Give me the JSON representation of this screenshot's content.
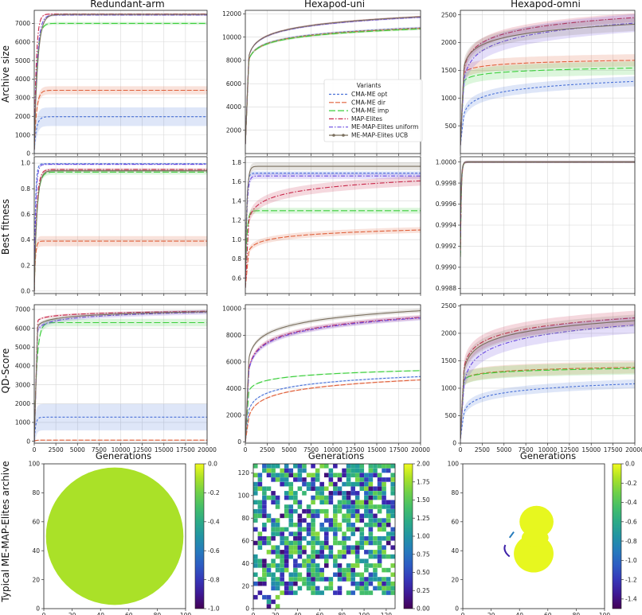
{
  "figure": {
    "col_titles": [
      "Redundant-arm",
      "Hexapod-uni",
      "Hexapod-omni"
    ],
    "row_labels": [
      "Archive size",
      "Best fitness",
      "QD-Score",
      "Typical ME-MAP-Elites archive"
    ],
    "xlabel": "Generations",
    "x_ticks": [
      0,
      2500,
      5000,
      7500,
      10000,
      12500,
      15000,
      17500,
      20000
    ],
    "legend_title": "Variants",
    "variants": [
      {
        "name": "CMA-ME opt",
        "color": "#4a72d8",
        "dash": "3,2"
      },
      {
        "name": "CMA-ME dir",
        "color": "#e0603a",
        "dash": "6,2"
      },
      {
        "name": "CMA-ME imp",
        "color": "#3ccf3c",
        "dash": "8,3"
      },
      {
        "name": "MAP-Elites",
        "color": "#c8284a",
        "dash": "6,2,1.5,2"
      },
      {
        "name": "ME-MAP-Elites uniform",
        "color": "#6a4ae0",
        "dash": "5,2,1.5,2"
      },
      {
        "name": "ME-MAP-Elites UCB",
        "color": "#7a6f5e",
        "dash": ""
      }
    ]
  },
  "chart_data": [
    {
      "type": "line",
      "id": "archive-redundant",
      "title": "Redundant-arm",
      "ylabel": "Archive size",
      "xlabel": "",
      "xlim": [
        0,
        20000
      ],
      "ylim": [
        0,
        7700
      ],
      "y_ticks": [
        0,
        1000,
        2000,
        3000,
        4000,
        5000,
        6000,
        7000
      ],
      "series": [
        {
          "name": "CMA-ME opt",
          "final": 1980,
          "start": 200,
          "rise": 800,
          "shape": "fast",
          "band": 500
        },
        {
          "name": "CMA-ME dir",
          "final": 3400,
          "start": 200,
          "rise": 800,
          "shape": "fast",
          "band": 220
        },
        {
          "name": "CMA-ME imp",
          "final": 7000,
          "start": 200,
          "rise": 900,
          "shape": "fast",
          "band": 80
        },
        {
          "name": "MAP-Elites",
          "final": 7500,
          "start": 200,
          "rise": 700,
          "shape": "fast",
          "band": 40
        },
        {
          "name": "ME-MAP-Elites uniform",
          "final": 7450,
          "start": 200,
          "rise": 1000,
          "shape": "fast",
          "band": 50
        },
        {
          "name": "ME-MAP-Elites UCB",
          "final": 7480,
          "start": 200,
          "rise": 1200,
          "shape": "fast",
          "band": 60
        }
      ]
    },
    {
      "type": "line",
      "id": "archive-hexuni",
      "title": "Hexapod-uni",
      "ylabel": "",
      "xlabel": "",
      "xlim": [
        0,
        20000
      ],
      "ylim": [
        0,
        12300
      ],
      "y_ticks": [
        2000,
        4000,
        6000,
        8000,
        10000,
        12000
      ],
      "series": [
        {
          "name": "CMA-ME opt",
          "final": 10800,
          "start": 800,
          "mid": 8000,
          "shape": "log",
          "band": 100
        },
        {
          "name": "CMA-ME dir",
          "final": 10750,
          "start": 800,
          "mid": 8000,
          "shape": "log",
          "band": 100
        },
        {
          "name": "CMA-ME imp",
          "final": 10700,
          "start": 800,
          "mid": 8000,
          "shape": "log",
          "band": 100
        },
        {
          "name": "MAP-Elites",
          "final": 11750,
          "start": 800,
          "mid": 8300,
          "shape": "log",
          "band": 80
        },
        {
          "name": "ME-MAP-Elites uniform",
          "final": 11700,
          "start": 800,
          "mid": 8300,
          "shape": "log",
          "band": 80
        },
        {
          "name": "ME-MAP-Elites UCB",
          "final": 11750,
          "start": 800,
          "mid": 8300,
          "shape": "log",
          "band": 80
        }
      ]
    },
    {
      "type": "line",
      "id": "archive-hexomni",
      "title": "Hexapod-omni",
      "ylabel": "",
      "xlabel": "",
      "xlim": [
        0,
        20000
      ],
      "ylim": [
        0,
        2580
      ],
      "y_ticks": [
        500,
        1000,
        1500,
        2000,
        2500
      ],
      "series": [
        {
          "name": "CMA-ME opt",
          "final": 1300,
          "start": 150,
          "mid": 700,
          "shape": "log",
          "band": 90
        },
        {
          "name": "CMA-ME dir",
          "final": 1680,
          "start": 150,
          "mid": 1450,
          "shape": "log",
          "band": 110
        },
        {
          "name": "CMA-ME imp",
          "final": 1540,
          "start": 150,
          "mid": 1300,
          "shape": "log",
          "band": 120
        },
        {
          "name": "MAP-Elites",
          "final": 2450,
          "start": 150,
          "mid": 1500,
          "shape": "log",
          "band": 80
        },
        {
          "name": "ME-MAP-Elites uniform",
          "final": 2350,
          "start": 150,
          "mid": 1300,
          "shape": "log",
          "band": 160
        },
        {
          "name": "ME-MAP-Elites UCB",
          "final": 2330,
          "start": 150,
          "mid": 1550,
          "shape": "log",
          "band": 120
        }
      ]
    },
    {
      "type": "line",
      "id": "fitness-redundant",
      "title": "",
      "ylabel": "Best fitness",
      "xlabel": "",
      "xlim": [
        0,
        20000
      ],
      "ylim": [
        -0.02,
        1.05
      ],
      "y_ticks": [
        0.0,
        0.2,
        0.4,
        0.6,
        0.8,
        1.0
      ],
      "y_tick_labels": [
        "0.0",
        "0.2",
        "0.4",
        "0.6",
        "0.8",
        "1.0"
      ],
      "series": [
        {
          "name": "CMA-ME opt",
          "final": 0.995,
          "start": 0.0,
          "rise": 400,
          "shape": "fast",
          "band": 0.005
        },
        {
          "name": "CMA-ME dir",
          "final": 0.39,
          "start": 0.0,
          "rise": 400,
          "shape": "fast",
          "band": 0.04
        },
        {
          "name": "CMA-ME imp",
          "final": 0.93,
          "start": 0.0,
          "rise": 900,
          "shape": "fast",
          "band": 0.02
        },
        {
          "name": "MAP-Elites",
          "final": 0.95,
          "start": 0.0,
          "rise": 800,
          "shape": "fast",
          "band": 0.01
        },
        {
          "name": "ME-MAP-Elites uniform",
          "final": 0.99,
          "start": 0.0,
          "rise": 500,
          "shape": "fast",
          "band": 0.005
        },
        {
          "name": "ME-MAP-Elites UCB",
          "final": 0.94,
          "start": 0.0,
          "rise": 900,
          "shape": "fast",
          "band": 0.01
        }
      ]
    },
    {
      "type": "line",
      "id": "fitness-hexuni",
      "title": "",
      "ylabel": "",
      "xlabel": "",
      "xlim": [
        0,
        20000
      ],
      "ylim": [
        0.44,
        1.86
      ],
      "y_ticks": [
        0.6,
        0.8,
        1.0,
        1.2,
        1.4,
        1.6,
        1.8
      ],
      "y_tick_labels": [
        "0.6",
        "0.8",
        "1.0",
        "1.2",
        "1.4",
        "1.6",
        "1.8"
      ],
      "series": [
        {
          "name": "CMA-ME opt",
          "final": 1.69,
          "start": 0.5,
          "rise": 400,
          "shape": "fast",
          "band": 0.02
        },
        {
          "name": "CMA-ME dir",
          "final": 1.1,
          "start": 0.5,
          "mid": 0.88,
          "shape": "log",
          "band": 0.03
        },
        {
          "name": "CMA-ME imp",
          "final": 1.3,
          "start": 0.5,
          "rise": 500,
          "shape": "fast",
          "band": 0.03
        },
        {
          "name": "MAP-Elites",
          "final": 1.61,
          "start": 0.5,
          "mid": 1.2,
          "shape": "log",
          "band": 0.05
        },
        {
          "name": "ME-MAP-Elites uniform",
          "final": 1.66,
          "start": 0.5,
          "rise": 500,
          "shape": "fast",
          "band": 0.03
        },
        {
          "name": "ME-MAP-Elites UCB",
          "final": 1.76,
          "start": 0.5,
          "rise": 500,
          "shape": "fast",
          "band": 0.04
        }
      ]
    },
    {
      "type": "line",
      "id": "fitness-hexomni",
      "title": "",
      "ylabel": "",
      "xlabel": "",
      "xlim": [
        0,
        20000
      ],
      "ylim": [
        0.99875,
        1.00005
      ],
      "y_ticks": [
        0.9988,
        0.999,
        0.9992,
        0.9994,
        0.9996,
        0.9998,
        1.0
      ],
      "y_tick_labels": [
        "0.9988",
        "0.9990",
        "0.9992",
        "0.9994",
        "0.9996",
        "0.9998",
        "1.0000"
      ],
      "series": [
        {
          "name": "CMA-ME opt",
          "final": 1.0,
          "start": 0.9991,
          "rise": 300,
          "shape": "fast",
          "band": 1e-05
        },
        {
          "name": "CMA-ME dir",
          "final": 1.0,
          "start": 0.9991,
          "rise": 300,
          "shape": "fast",
          "band": 1e-05
        },
        {
          "name": "CMA-ME imp",
          "final": 1.0,
          "start": 0.9991,
          "rise": 300,
          "shape": "fast",
          "band": 1e-05
        },
        {
          "name": "MAP-Elites",
          "final": 1.0,
          "start": 0.9992,
          "rise": 300,
          "shape": "fast",
          "band": 1e-05
        },
        {
          "name": "ME-MAP-Elites uniform",
          "final": 1.0,
          "start": 0.9993,
          "rise": 300,
          "shape": "fast",
          "band": 1e-05
        },
        {
          "name": "ME-MAP-Elites UCB",
          "final": 1.0,
          "start": 0.9994,
          "rise": 300,
          "shape": "fast",
          "band": 1e-05
        }
      ]
    },
    {
      "type": "line",
      "id": "qd-redundant",
      "title": "",
      "ylabel": "QD-Score",
      "xlabel": "Generations",
      "xlim": [
        0,
        20000
      ],
      "ylim": [
        -100,
        7250
      ],
      "y_ticks": [
        0,
        1000,
        2000,
        3000,
        4000,
        5000,
        6000,
        7000
      ],
      "series": [
        {
          "name": "CMA-ME opt",
          "final": 1280,
          "start": 0,
          "rise": 500,
          "shape": "fast",
          "band": 700
        },
        {
          "name": "CMA-ME dir",
          "final": 60,
          "start": 0,
          "rise": 500,
          "shape": "fast",
          "band": 20
        },
        {
          "name": "CMA-ME imp",
          "final": 6300,
          "start": 0,
          "rise": 900,
          "shape": "fast",
          "band": 200
        },
        {
          "name": "MAP-Elites",
          "final": 6900,
          "start": 0,
          "mid": 6400,
          "shape": "log",
          "band": 60
        },
        {
          "name": "ME-MAP-Elites uniform",
          "final": 6850,
          "start": 0,
          "mid": 5900,
          "shape": "log",
          "band": 120
        },
        {
          "name": "ME-MAP-Elites UCB",
          "final": 6880,
          "start": 0,
          "mid": 6100,
          "shape": "log",
          "band": 100
        }
      ]
    },
    {
      "type": "line",
      "id": "qd-hexuni",
      "title": "",
      "ylabel": "",
      "xlabel": "Generations",
      "xlim": [
        0,
        20000
      ],
      "ylim": [
        -100,
        10300
      ],
      "y_ticks": [
        0,
        2000,
        4000,
        6000,
        8000,
        10000
      ],
      "series": [
        {
          "name": "CMA-ME opt",
          "final": 4900,
          "start": 0,
          "mid": 2300,
          "shape": "log",
          "band": 60
        },
        {
          "name": "CMA-ME dir",
          "final": 4650,
          "start": 0,
          "mid": 1800,
          "shape": "log",
          "band": 60
        },
        {
          "name": "CMA-ME imp",
          "final": 5350,
          "start": 0,
          "mid": 3800,
          "shape": "log",
          "band": 60
        },
        {
          "name": "MAP-Elites",
          "final": 9350,
          "start": 0,
          "mid": 5400,
          "shape": "log",
          "band": 180
        },
        {
          "name": "ME-MAP-Elites uniform",
          "final": 9300,
          "start": 0,
          "mid": 5300,
          "shape": "log",
          "band": 180
        },
        {
          "name": "ME-MAP-Elites UCB",
          "final": 9850,
          "start": 0,
          "mid": 6200,
          "shape": "log",
          "band": 150
        }
      ]
    },
    {
      "type": "line",
      "id": "qd-hexomni",
      "title": "",
      "ylabel": "",
      "xlabel": "Generations",
      "xlim": [
        0,
        20000
      ],
      "ylim": [
        0,
        2520
      ],
      "y_ticks": [
        0,
        500,
        1000,
        1500,
        2000,
        2500
      ],
      "series": [
        {
          "name": "CMA-ME opt",
          "final": 1080,
          "start": 80,
          "mid": 550,
          "shape": "log",
          "band": 80
        },
        {
          "name": "CMA-ME dir",
          "final": 1380,
          "start": 80,
          "mid": 1150,
          "shape": "log",
          "band": 110
        },
        {
          "name": "CMA-ME imp",
          "final": 1360,
          "start": 80,
          "mid": 1150,
          "shape": "log",
          "band": 110
        },
        {
          "name": "MAP-Elites",
          "final": 2280,
          "start": 80,
          "mid": 1350,
          "shape": "log",
          "band": 130
        },
        {
          "name": "ME-MAP-Elites uniform",
          "final": 2150,
          "start": 80,
          "mid": 1050,
          "shape": "log",
          "band": 150
        },
        {
          "name": "ME-MAP-Elites UCB",
          "final": 2230,
          "start": 80,
          "mid": 1300,
          "shape": "log",
          "band": 110
        }
      ]
    },
    {
      "type": "heatmap",
      "id": "archive-map-redundant",
      "shape": "disk",
      "xlim": [
        0,
        100
      ],
      "ylim": [
        0,
        100
      ],
      "x_ticks": [
        0,
        20,
        40,
        60,
        80,
        100
      ],
      "y_ticks": [
        0,
        20,
        40,
        60,
        80,
        100
      ],
      "cbar_range": [
        -1.0,
        0.0
      ],
      "cbar_ticks": [
        0.0,
        -0.2,
        -0.4,
        -0.6,
        -0.8,
        -1.0
      ],
      "cbar_tick_labels": [
        "0.0",
        "-0.2",
        "-0.4",
        "-0.6",
        "-0.8",
        "-1.0"
      ],
      "typical_value": -0.1
    },
    {
      "type": "heatmap",
      "id": "archive-map-hexuni",
      "shape": "sparse-grid",
      "xlim": [
        0,
        128
      ],
      "ylim": [
        0,
        128
      ],
      "x_ticks": [
        0,
        20,
        40,
        60,
        80,
        100,
        120
      ],
      "y_ticks": [
        0,
        20,
        40,
        60,
        80,
        100,
        120
      ],
      "cbar_range": [
        0.0,
        2.0
      ],
      "cbar_ticks": [
        0.0,
        0.25,
        0.5,
        0.75,
        1.0,
        1.25,
        1.5,
        1.75,
        2.0
      ],
      "cbar_tick_labels": [
        "0.00",
        "0.25",
        "0.50",
        "0.75",
        "1.00",
        "1.25",
        "1.50",
        "1.75",
        "2.00"
      ],
      "typical_value": 1.25
    },
    {
      "type": "heatmap",
      "id": "archive-map-hexomni",
      "shape": "figure-eight",
      "xlim": [
        0,
        100
      ],
      "ylim": [
        0,
        100
      ],
      "x_ticks": [
        0,
        20,
        40,
        60,
        80,
        100
      ],
      "y_ticks": [
        0,
        20,
        40,
        60,
        80,
        100
      ],
      "cbar_range": [
        -1.5,
        0.0
      ],
      "cbar_ticks": [
        0.0,
        -0.2,
        -0.4,
        -0.6,
        -0.8,
        -1.0,
        -1.2,
        -1.4
      ],
      "cbar_tick_labels": [
        "0.0",
        "-0.2",
        "-0.4",
        "-0.6",
        "-0.8",
        "-1.0",
        "-1.2",
        "-1.4"
      ],
      "typical_value": -0.02
    }
  ]
}
